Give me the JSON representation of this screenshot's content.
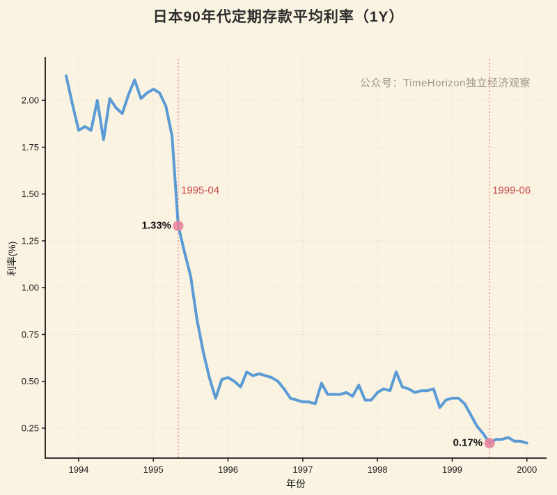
{
  "page": {
    "title": "日本90年代定期存款平均利率（1Y）",
    "watermark": "公众号：TimeHorizon独立经济观察"
  },
  "chart_data": {
    "type": "line",
    "title": "日本90年代定期存款平均利率（1Y）",
    "xlabel": "年份",
    "ylabel": "利率(%)",
    "x_ticks": [
      1994,
      1995,
      1996,
      1997,
      1998,
      1999,
      2000
    ],
    "y_ticks": [
      0.25,
      0.5,
      0.75,
      1.0,
      1.25,
      1.5,
      1.75,
      2.0
    ],
    "xlim": [
      1993.553,
      2000.263
    ],
    "ylim": [
      0.09,
      2.22
    ],
    "grid": true,
    "legend": "none",
    "line_color": "#5b9bd5",
    "marker_color": "#e8849f",
    "annotation_color": "#c84b4b",
    "axis_color": "#1a1a1a",
    "grid_color": "#e9dfc6",
    "background_color": "#faf3e2",
    "series": [
      {
        "name": "定期存款平均利率(1Y)",
        "x": [
          "1993-10",
          "1993-11",
          "1993-12",
          "1994-01",
          "1994-02",
          "1994-03",
          "1994-04",
          "1994-05",
          "1994-06",
          "1994-07",
          "1994-08",
          "1994-09",
          "1994-10",
          "1994-11",
          "1994-12",
          "1995-01",
          "1995-02",
          "1995-03",
          "1995-04",
          "1995-05",
          "1995-06",
          "1995-07",
          "1995-08",
          "1995-09",
          "1995-10",
          "1995-11",
          "1995-12",
          "1996-01",
          "1996-02",
          "1996-03",
          "1996-04",
          "1996-05",
          "1996-06",
          "1996-07",
          "1996-08",
          "1996-09",
          "1996-10",
          "1996-11",
          "1996-12",
          "1997-01",
          "1997-02",
          "1997-03",
          "1997-04",
          "1997-05",
          "1997-06",
          "1997-07",
          "1997-08",
          "1997-09",
          "1997-10",
          "1997-11",
          "1997-12",
          "1998-01",
          "1998-02",
          "1998-03",
          "1998-04",
          "1998-05",
          "1998-06",
          "1998-07",
          "1998-08",
          "1998-09",
          "1998-10",
          "1998-11",
          "1998-12",
          "1999-01",
          "1999-02",
          "1999-03",
          "1999-04",
          "1999-05",
          "1999-06",
          "1999-07",
          "1999-08",
          "1999-09",
          "1999-10",
          "1999-11",
          "1999-12"
        ],
        "values": [
          2.13,
          1.98,
          1.84,
          1.86,
          1.84,
          2.0,
          1.79,
          2.01,
          1.96,
          1.93,
          2.03,
          2.11,
          2.01,
          2.04,
          2.06,
          2.04,
          1.97,
          1.81,
          1.33,
          1.19,
          1.06,
          0.83,
          0.66,
          0.52,
          0.41,
          0.51,
          0.52,
          0.5,
          0.47,
          0.55,
          0.53,
          0.54,
          0.53,
          0.52,
          0.5,
          0.46,
          0.41,
          0.4,
          0.39,
          0.39,
          0.38,
          0.49,
          0.43,
          0.43,
          0.43,
          0.44,
          0.42,
          0.48,
          0.4,
          0.4,
          0.44,
          0.46,
          0.45,
          0.55,
          0.47,
          0.46,
          0.44,
          0.45,
          0.45,
          0.46,
          0.36,
          0.4,
          0.41,
          0.41,
          0.38,
          0.32,
          0.26,
          0.22,
          0.17,
          0.19,
          0.19,
          0.2,
          0.18,
          0.18,
          0.17
        ]
      }
    ],
    "annotations": [
      {
        "date": "1995-04",
        "label": "1995-04",
        "value": 1.33,
        "value_label": "1.33%"
      },
      {
        "date": "1999-06",
        "label": "1999-06",
        "value": 0.17,
        "value_label": "0.17%"
      }
    ]
  }
}
